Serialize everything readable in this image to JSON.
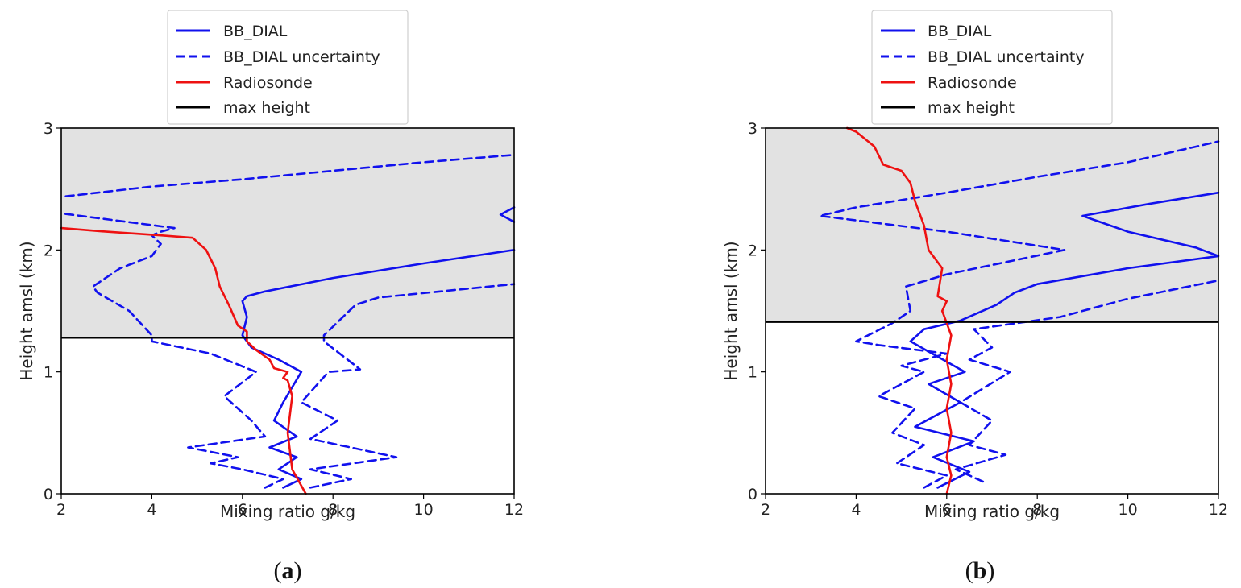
{
  "chart_data": [
    {
      "type": "line",
      "panel_label": "a",
      "xlabel": "Mixing ratio g/kg",
      "ylabel": "Height amsl (km)",
      "xlim": [
        2,
        12
      ],
      "ylim": [
        0,
        3
      ],
      "xticks": [
        "2",
        "4",
        "6",
        "8",
        "10",
        "12"
      ],
      "yticks": [
        "0",
        "1",
        "2",
        "3"
      ],
      "max_height_km": 1.28,
      "legend": [
        {
          "label": "BB_DIAL",
          "style": "solid",
          "color": "#1111ee"
        },
        {
          "label": "BB_DIAL uncertainty",
          "style": "dashed",
          "color": "#1111ee"
        },
        {
          "label": "Radiosonde",
          "style": "solid",
          "color": "#ee1111"
        },
        {
          "label": "max height",
          "style": "solid",
          "color": "#000000"
        }
      ],
      "series": [
        {
          "name": "BB_DIAL",
          "style": "solid",
          "color": "#1111ee",
          "x": [
            6.9,
            7.3,
            6.8,
            7.2,
            6.6,
            7.2,
            6.7,
            6.9,
            7.3,
            6.8,
            6.2,
            6.0,
            6.1,
            6.0,
            6.1,
            6.5,
            8.0,
            10.0,
            12.0
          ],
          "y": [
            0.05,
            0.12,
            0.2,
            0.3,
            0.38,
            0.47,
            0.6,
            0.75,
            1.0,
            1.1,
            1.2,
            1.3,
            1.45,
            1.58,
            1.62,
            1.66,
            1.77,
            1.89,
            2.0
          ]
        },
        {
          "name": "BB_DIAL",
          "style": "solid",
          "color": "#1111ee",
          "x": [
            12.0,
            11.7,
            12.0
          ],
          "y": [
            2.23,
            2.29,
            2.35
          ]
        },
        {
          "name": "BB_DIAL uncertainty (lower)",
          "style": "dashed",
          "color": "#1111ee",
          "x": [
            6.5,
            6.9,
            6.0,
            5.3,
            5.9,
            4.8,
            6.5,
            6.2,
            5.6,
            6.3,
            5.3,
            4.0,
            4.0,
            3.5,
            2.8,
            2.7,
            3.3,
            4.0,
            4.2,
            4.0,
            4.2,
            4.5,
            2.0
          ],
          "y": [
            0.05,
            0.12,
            0.2,
            0.25,
            0.3,
            0.38,
            0.47,
            0.6,
            0.8,
            1.0,
            1.15,
            1.25,
            1.3,
            1.5,
            1.65,
            1.7,
            1.85,
            1.95,
            2.05,
            2.12,
            2.15,
            2.18,
            2.3
          ]
        },
        {
          "name": "BB_DIAL uncertainty (upper)",
          "style": "dashed",
          "color": "#1111ee",
          "x": [
            7.5,
            8.4,
            7.5,
            9.4,
            7.5,
            8.1,
            7.3,
            7.9,
            8.6,
            7.8,
            7.8,
            8.5,
            9.0,
            12.0
          ],
          "y": [
            0.05,
            0.12,
            0.2,
            0.3,
            0.45,
            0.6,
            0.75,
            1.0,
            1.02,
            1.25,
            1.3,
            1.55,
            1.61,
            1.72
          ]
        },
        {
          "name": "BB_DIAL uncertainty (upper top)",
          "style": "dashed",
          "color": "#1111ee",
          "x": [
            2.1,
            4.0,
            6.0,
            8.0,
            10.0,
            12.0
          ],
          "y": [
            2.44,
            2.52,
            2.58,
            2.65,
            2.72,
            2.78
          ]
        },
        {
          "name": "Radiosonde",
          "style": "solid",
          "color": "#ee1111",
          "x": [
            7.4,
            7.1,
            7.0,
            7.1,
            7.0,
            6.9,
            7.0,
            6.7,
            6.6,
            6.3,
            6.1,
            6.1,
            5.9,
            5.7,
            5.5,
            5.4,
            5.2,
            4.9,
            4.2,
            3.0,
            2.0
          ],
          "y": [
            0.0,
            0.2,
            0.5,
            0.8,
            0.93,
            0.95,
            1.0,
            1.03,
            1.1,
            1.18,
            1.25,
            1.33,
            1.38,
            1.55,
            1.7,
            1.85,
            2.0,
            2.1,
            2.12,
            2.15,
            2.18
          ]
        }
      ]
    },
    {
      "type": "line",
      "panel_label": "b",
      "xlabel": "Mixing ratio g/kg",
      "ylabel": "Height amsl (km)",
      "xlim": [
        2,
        12
      ],
      "ylim": [
        0,
        3
      ],
      "xticks": [
        "2",
        "4",
        "6",
        "8",
        "10",
        "12"
      ],
      "yticks": [
        "0",
        "1",
        "2",
        "3"
      ],
      "max_height_km": 1.41,
      "legend": [
        {
          "label": "BB_DIAL",
          "style": "solid",
          "color": "#1111ee"
        },
        {
          "label": "BB_DIAL uncertainty",
          "style": "dashed",
          "color": "#1111ee"
        },
        {
          "label": "Radiosonde",
          "style": "solid",
          "color": "#ee1111"
        },
        {
          "label": "max height",
          "style": "solid",
          "color": "#000000"
        }
      ],
      "series": [
        {
          "name": "BB_DIAL",
          "style": "solid",
          "color": "#1111ee",
          "x": [
            5.8,
            6.5,
            5.7,
            6.6,
            5.3,
            6.3,
            5.6,
            6.4,
            5.2,
            5.5,
            6.3,
            7.1,
            7.5,
            8.0,
            10.0,
            12.0,
            11.5,
            10.0,
            9.0,
            10.5,
            12.0
          ],
          "y": [
            0.05,
            0.18,
            0.3,
            0.43,
            0.55,
            0.75,
            0.9,
            1.0,
            1.25,
            1.35,
            1.42,
            1.55,
            1.65,
            1.72,
            1.85,
            1.95,
            2.02,
            2.15,
            2.28,
            2.38,
            2.47
          ]
        },
        {
          "name": "BB_DIAL uncertainty (lower)",
          "style": "dashed",
          "color": "#1111ee",
          "x": [
            5.5,
            6.0,
            4.9,
            5.5,
            4.8,
            5.3,
            4.5,
            5.5,
            5.0,
            6.0,
            4.5,
            4.0,
            4.8,
            5.2,
            5.1,
            6.0,
            8.6,
            6.0,
            3.2,
            4.0,
            6.0,
            8.0,
            10.0,
            12.0
          ],
          "y": [
            0.05,
            0.15,
            0.25,
            0.4,
            0.5,
            0.7,
            0.8,
            1.0,
            1.05,
            1.15,
            1.22,
            1.25,
            1.4,
            1.5,
            1.7,
            1.8,
            2.0,
            2.15,
            2.28,
            2.35,
            2.47,
            2.6,
            2.72,
            2.89
          ]
        },
        {
          "name": "BB_DIAL uncertainty (upper)",
          "style": "dashed",
          "color": "#1111ee",
          "x": [
            6.8,
            6.2,
            7.3,
            6.5,
            7.0,
            6.3,
            7.4,
            6.5,
            7.0,
            6.6,
            8.5,
            10.0,
            12.0
          ],
          "y": [
            0.1,
            0.2,
            0.32,
            0.4,
            0.6,
            0.75,
            1.0,
            1.1,
            1.2,
            1.35,
            1.45,
            1.6,
            1.75
          ]
        },
        {
          "name": "Radiosonde",
          "style": "solid",
          "color": "#ee1111",
          "x": [
            6.0,
            6.1,
            6.0,
            6.1,
            6.0,
            6.1,
            6.0,
            6.1,
            6.0,
            5.9,
            6.0,
            5.8,
            5.9,
            5.6,
            5.5,
            5.3,
            5.2,
            5.0,
            4.6,
            4.4,
            4.0,
            3.8
          ],
          "y": [
            0.0,
            0.15,
            0.3,
            0.5,
            0.7,
            0.9,
            1.1,
            1.3,
            1.4,
            1.5,
            1.58,
            1.62,
            1.85,
            2.0,
            2.2,
            2.4,
            2.55,
            2.65,
            2.7,
            2.85,
            2.97,
            3.0
          ]
        }
      ]
    }
  ]
}
